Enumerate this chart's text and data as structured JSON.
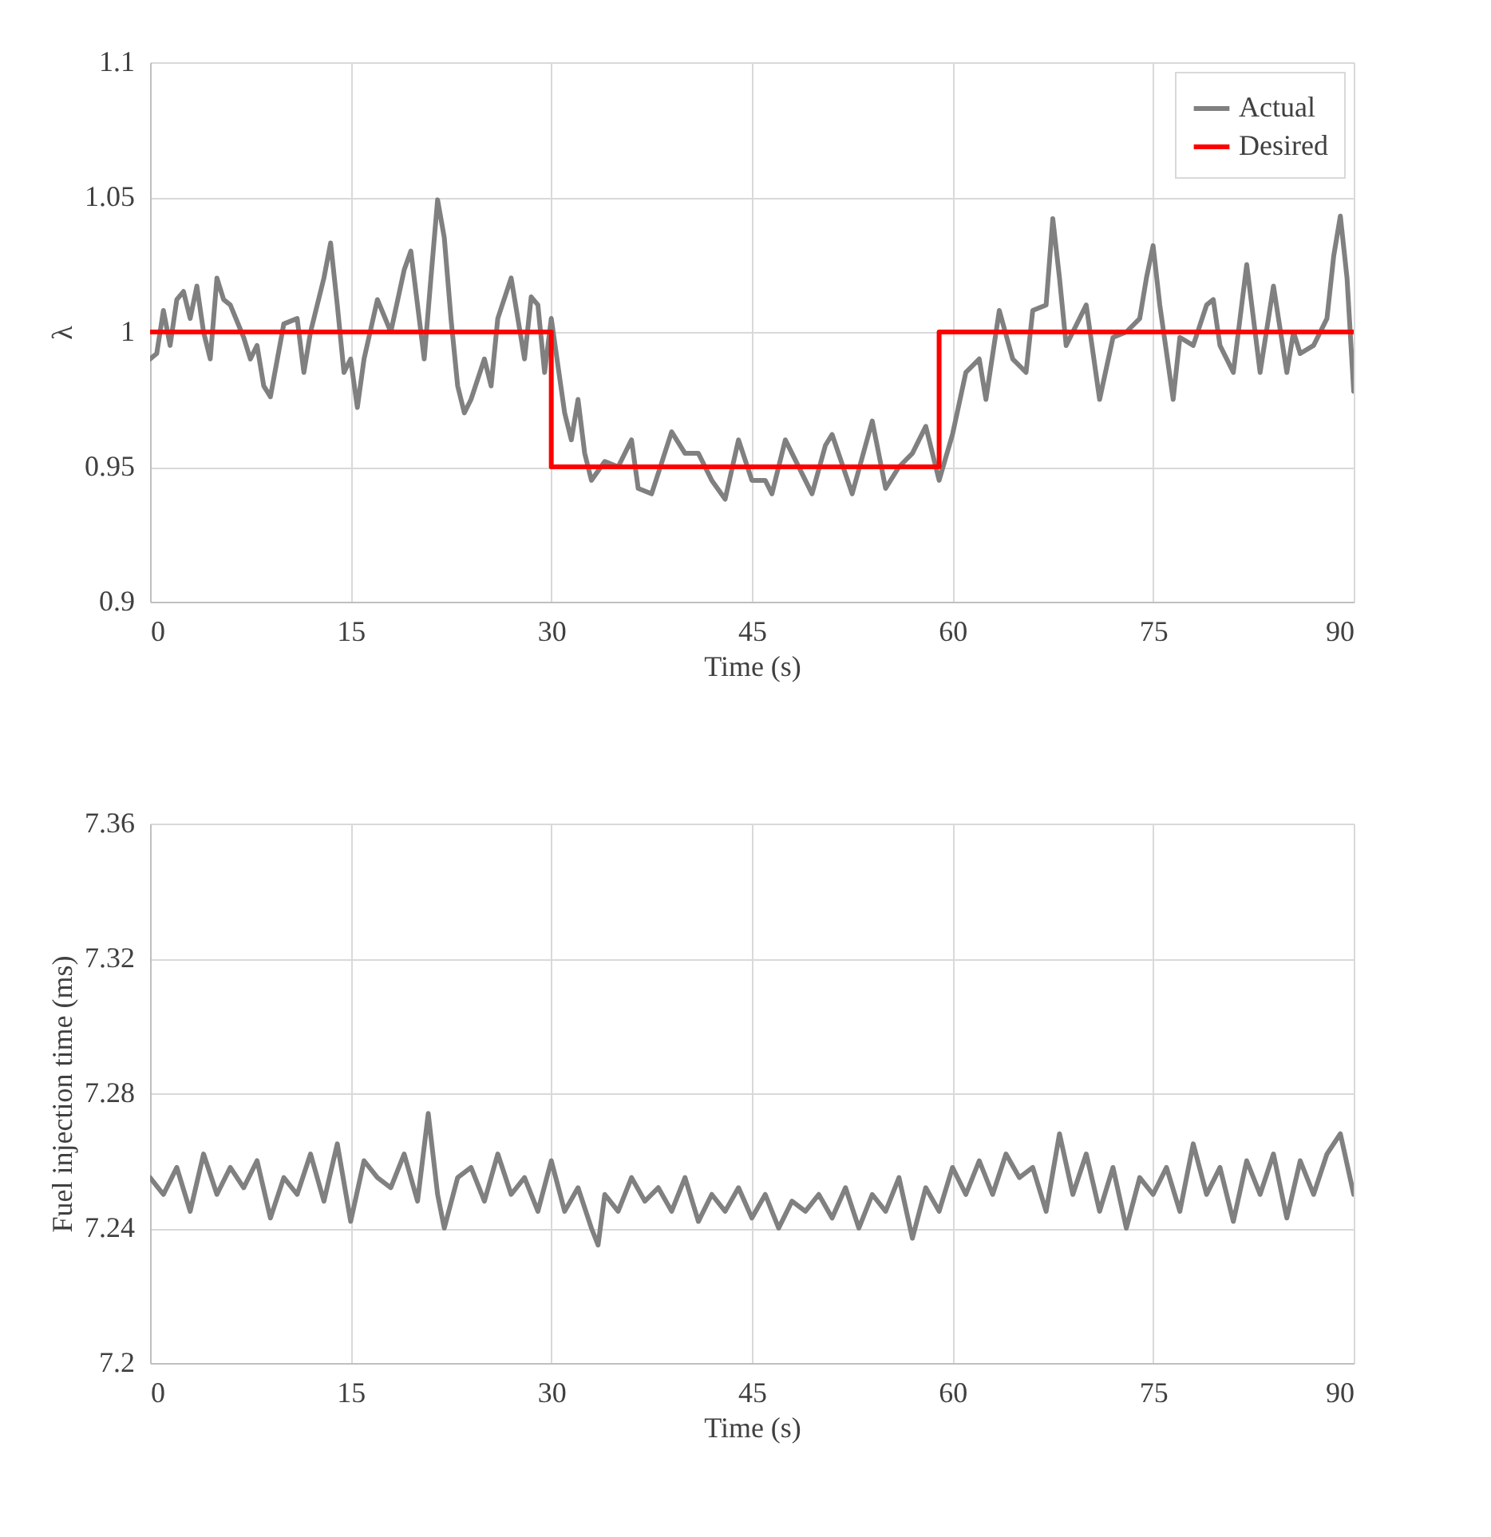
{
  "chart_data": [
    {
      "type": "line",
      "ylabel": "λ",
      "xlabel": "Time (s)",
      "xlim": [
        0,
        90
      ],
      "xticks": [
        0,
        15,
        30,
        45,
        60,
        75,
        90
      ],
      "ylim": [
        0.9,
        1.1
      ],
      "yticks": [
        0.9,
        0.95,
        1,
        1.05,
        1.1
      ],
      "grid": true,
      "legend": "top right",
      "series": [
        {
          "name": "Actual",
          "color": "#808080",
          "x": [
            0,
            0.5,
            1,
            1.5,
            2,
            2.5,
            3,
            3.5,
            4,
            4.5,
            5,
            5.5,
            6,
            7,
            7.5,
            8,
            8.5,
            9,
            10,
            11,
            11.5,
            12,
            13,
            13.5,
            14,
            14.5,
            15,
            15.5,
            16,
            17,
            18,
            19,
            19.5,
            20,
            20.5,
            21,
            21.5,
            22,
            22.5,
            23,
            23.5,
            24,
            25,
            25.5,
            26,
            27,
            28,
            28.5,
            29,
            29.5,
            30,
            31,
            31.5,
            32,
            32.5,
            33,
            34,
            35,
            36,
            36.5,
            37.5,
            39,
            40,
            41,
            42,
            43,
            44,
            45,
            46,
            46.5,
            47.5,
            49.5,
            50.5,
            51,
            52.5,
            54,
            55,
            56,
            57,
            58,
            59,
            60,
            61,
            62,
            62.5,
            63.5,
            64.5,
            65.5,
            66,
            67,
            67.5,
            68,
            68.5,
            69.5,
            70,
            71,
            72,
            73,
            74,
            74.5,
            75,
            75.5,
            76.5,
            77,
            78,
            79,
            79.5,
            80,
            81,
            82,
            83,
            84,
            85,
            85.5,
            86,
            87,
            88,
            88.5,
            89,
            89.5,
            90
          ],
          "values": [
            0.99,
            0.992,
            1.008,
            0.995,
            1.012,
            1.015,
            1.005,
            1.017,
            1.0,
            0.99,
            1.02,
            1.012,
            1.01,
            0.998,
            0.99,
            0.995,
            0.98,
            0.976,
            1.003,
            1.005,
            0.985,
            1.0,
            1.02,
            1.033,
            1.01,
            0.985,
            0.99,
            0.972,
            0.99,
            1.012,
            1.0,
            1.023,
            1.03,
            1.01,
            0.99,
            1.02,
            1.049,
            1.035,
            1.005,
            0.98,
            0.97,
            0.975,
            0.99,
            0.98,
            1.005,
            1.02,
            0.99,
            1.013,
            1.01,
            0.985,
            1.005,
            0.97,
            0.96,
            0.975,
            0.955,
            0.945,
            0.952,
            0.95,
            0.96,
            0.942,
            0.94,
            0.963,
            0.955,
            0.955,
            0.945,
            0.938,
            0.96,
            0.945,
            0.945,
            0.94,
            0.96,
            0.94,
            0.958,
            0.962,
            0.94,
            0.967,
            0.942,
            0.95,
            0.955,
            0.965,
            0.945,
            0.962,
            0.985,
            0.99,
            0.975,
            1.008,
            0.99,
            0.985,
            1.008,
            1.01,
            1.042,
            1.02,
            0.995,
            1.005,
            1.01,
            0.975,
            0.998,
            1.0,
            1.005,
            1.02,
            1.032,
            1.01,
            0.975,
            0.998,
            0.995,
            1.01,
            1.012,
            0.995,
            0.985,
            1.025,
            0.985,
            1.017,
            0.985,
            1.0,
            0.992,
            0.995,
            1.005,
            1.028,
            1.043,
            1.02,
            0.978
          ]
        },
        {
          "name": "Desired",
          "color": "#ff0000",
          "x": [
            0,
            30,
            30,
            59,
            59,
            90
          ],
          "values": [
            1,
            1,
            0.95,
            0.95,
            1,
            1
          ]
        }
      ]
    },
    {
      "type": "line",
      "ylabel": "Fuel injection time (ms)",
      "xlabel": "Time (s)",
      "xlim": [
        0,
        90
      ],
      "xticks": [
        0,
        15,
        30,
        45,
        60,
        75,
        90
      ],
      "ylim": [
        7.2,
        7.36
      ],
      "yticks": [
        7.2,
        7.24,
        7.28,
        7.32,
        7.36
      ],
      "grid": true,
      "series": [
        {
          "color": "#808080",
          "x": [
            0,
            1,
            2,
            3,
            4,
            5,
            6,
            7,
            8,
            9,
            10,
            11,
            12,
            13,
            14,
            15,
            16,
            17,
            18,
            19,
            20,
            20.8,
            21.5,
            22,
            23,
            24,
            25,
            26,
            27,
            28,
            29,
            30,
            31,
            32,
            33,
            33.5,
            34,
            35,
            36,
            37,
            38,
            39,
            40,
            41,
            42,
            43,
            44,
            45,
            46,
            47,
            48,
            49,
            50,
            51,
            52,
            53,
            54,
            55,
            56,
            57,
            58,
            59,
            60,
            61,
            62,
            63,
            64,
            65,
            66,
            67,
            68,
            69,
            70,
            71,
            72,
            73,
            74,
            75,
            76,
            77,
            78,
            79,
            80,
            81,
            82,
            83,
            84,
            85,
            86,
            87,
            88,
            89,
            90
          ],
          "values": [
            7.255,
            7.25,
            7.258,
            7.245,
            7.262,
            7.25,
            7.258,
            7.252,
            7.26,
            7.243,
            7.255,
            7.25,
            7.262,
            7.248,
            7.265,
            7.242,
            7.26,
            7.255,
            7.252,
            7.262,
            7.248,
            7.274,
            7.25,
            7.24,
            7.255,
            7.258,
            7.248,
            7.262,
            7.25,
            7.255,
            7.245,
            7.26,
            7.245,
            7.252,
            7.24,
            7.235,
            7.25,
            7.245,
            7.255,
            7.248,
            7.252,
            7.245,
            7.255,
            7.242,
            7.25,
            7.245,
            7.252,
            7.243,
            7.25,
            7.24,
            7.248,
            7.245,
            7.25,
            7.243,
            7.252,
            7.24,
            7.25,
            7.245,
            7.255,
            7.237,
            7.252,
            7.245,
            7.258,
            7.25,
            7.26,
            7.25,
            7.262,
            7.255,
            7.258,
            7.245,
            7.268,
            7.25,
            7.262,
            7.245,
            7.258,
            7.24,
            7.255,
            7.25,
            7.258,
            7.245,
            7.265,
            7.25,
            7.258,
            7.242,
            7.26,
            7.25,
            7.262,
            7.243,
            7.26,
            7.25,
            7.262,
            7.268,
            7.25
          ]
        }
      ]
    }
  ]
}
